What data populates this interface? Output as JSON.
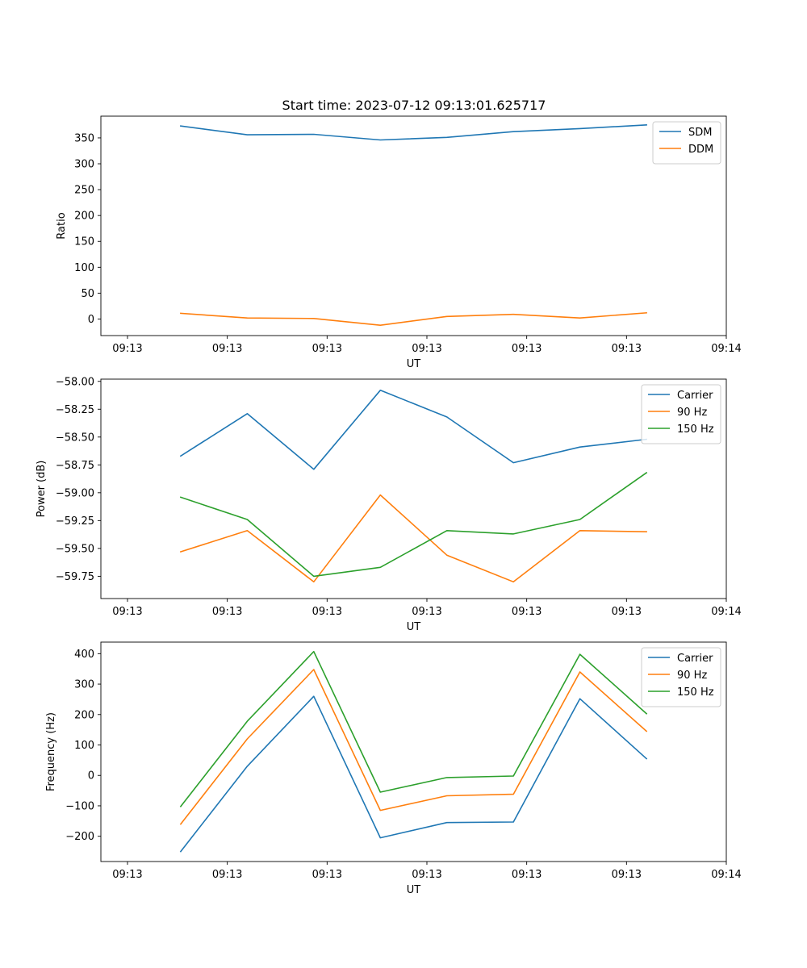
{
  "figure": {
    "title": "Start time: 2023-07-12 09:13:01.625717"
  },
  "chart_data": [
    {
      "type": "line",
      "title": "Start time: 2023-07-12 09:13:01.625717",
      "xlabel": "UT",
      "ylabel": "Ratio",
      "x": [
        1,
        2,
        3,
        4,
        5,
        6,
        7,
        8
      ],
      "xlim": [
        -0.2,
        9.2
      ],
      "xticks": [
        0.2,
        1.7,
        3.2,
        4.7,
        6.2,
        7.7,
        9.2
      ],
      "xtick_labels": [
        "09:13",
        "09:13",
        "09:13",
        "09:13",
        "09:13",
        "09:13",
        "09:14"
      ],
      "ylim": [
        -32,
        392
      ],
      "yticks": [
        0,
        50,
        100,
        150,
        200,
        250,
        300,
        350
      ],
      "ytick_labels": [
        "0",
        "50",
        "100",
        "150",
        "200",
        "250",
        "300",
        "350"
      ],
      "legend": "top-right",
      "series": [
        {
          "name": "SDM",
          "color": "#1f77b4",
          "values": [
            373,
            356,
            357,
            346,
            351,
            362,
            368,
            375
          ]
        },
        {
          "name": "DDM",
          "color": "#ff7f0e",
          "values": [
            11,
            2,
            1,
            -12,
            5,
            9,
            2,
            12
          ]
        }
      ]
    },
    {
      "type": "line",
      "xlabel": "UT",
      "ylabel": "Power (dB)",
      "x": [
        1,
        2,
        3,
        4,
        5,
        6,
        7,
        8
      ],
      "xlim": [
        -0.2,
        9.2
      ],
      "xticks": [
        0.2,
        1.7,
        3.2,
        4.7,
        6.2,
        7.7,
        9.2
      ],
      "xtick_labels": [
        "09:13",
        "09:13",
        "09:13",
        "09:13",
        "09:13",
        "09:13",
        "09:14"
      ],
      "ylim": [
        -59.95,
        -57.98
      ],
      "yticks": [
        -59.75,
        -59.5,
        -59.25,
        -59.0,
        -58.75,
        -58.5,
        -58.25,
        -58.0
      ],
      "ytick_labels": [
        "−59.75",
        "−59.50",
        "−59.25",
        "−59.00",
        "−58.75",
        "−58.50",
        "−58.25",
        "−58.00"
      ],
      "legend": "top-right",
      "series": [
        {
          "name": "Carrier",
          "color": "#1f77b4",
          "values": [
            -58.67,
            -58.29,
            -58.79,
            -58.08,
            -58.32,
            -58.73,
            -58.59,
            -58.52
          ]
        },
        {
          "name": "90 Hz",
          "color": "#ff7f0e",
          "values": [
            -59.53,
            -59.34,
            -59.8,
            -59.02,
            -59.56,
            -59.8,
            -59.34,
            -59.35
          ]
        },
        {
          "name": "150 Hz",
          "color": "#2ca02c",
          "values": [
            -59.04,
            -59.24,
            -59.75,
            -59.67,
            -59.34,
            -59.37,
            -59.24,
            -58.82
          ]
        }
      ]
    },
    {
      "type": "line",
      "xlabel": "UT",
      "ylabel": "Frequency (Hz)",
      "x": [
        1,
        2,
        3,
        4,
        5,
        6,
        7,
        8
      ],
      "xlim": [
        -0.2,
        9.2
      ],
      "xticks": [
        0.2,
        1.7,
        3.2,
        4.7,
        6.2,
        7.7,
        9.2
      ],
      "xtick_labels": [
        "09:13",
        "09:13",
        "09:13",
        "09:13",
        "09:13",
        "09:13",
        "09:14"
      ],
      "ylim": [
        -283,
        438
      ],
      "yticks": [
        -200,
        -100,
        0,
        100,
        200,
        300,
        400
      ],
      "ytick_labels": [
        "−200",
        "−100",
        "0",
        "100",
        "200",
        "300",
        "400"
      ],
      "legend": "top-right",
      "series": [
        {
          "name": "Carrier",
          "color": "#1f77b4",
          "values": [
            -250,
            30,
            260,
            -205,
            -155,
            -153,
            252,
            55
          ]
        },
        {
          "name": "90 Hz",
          "color": "#ff7f0e",
          "values": [
            -160,
            120,
            348,
            -115,
            -67,
            -62,
            340,
            145
          ]
        },
        {
          "name": "150 Hz",
          "color": "#2ca02c",
          "values": [
            -102,
            178,
            407,
            -55,
            -7,
            -2,
            398,
            203
          ]
        }
      ]
    }
  ]
}
